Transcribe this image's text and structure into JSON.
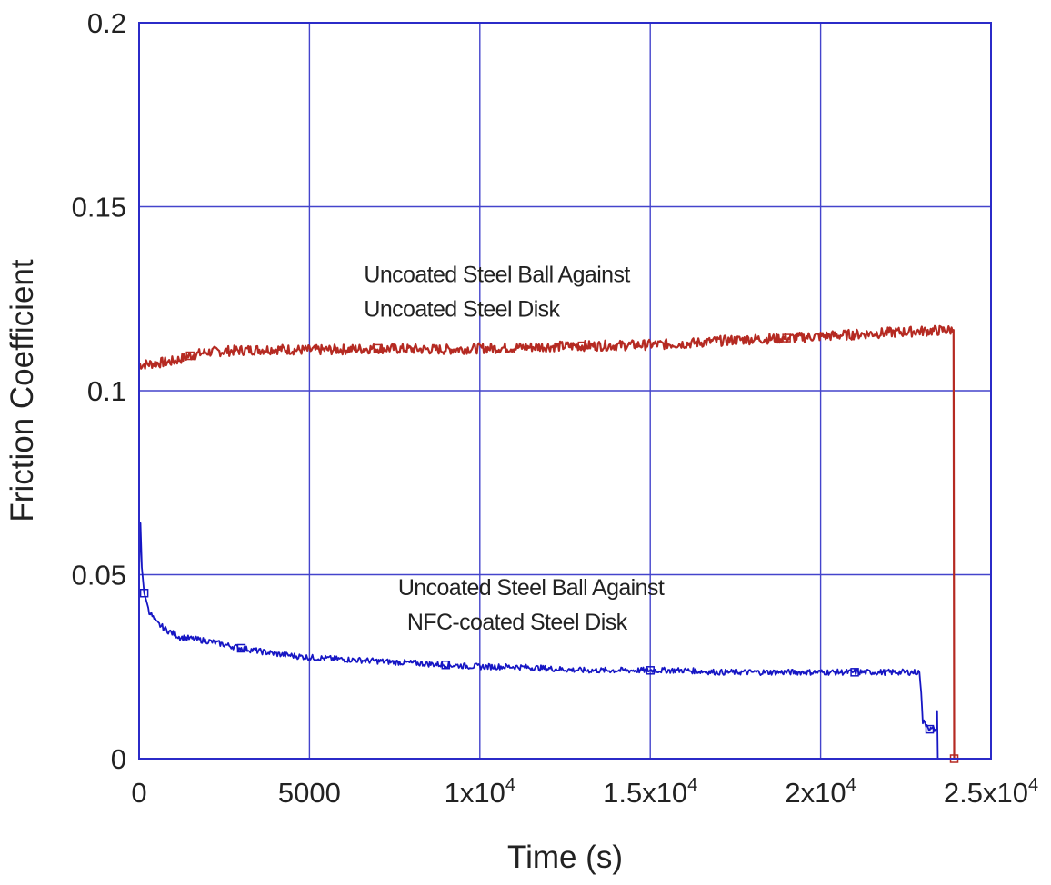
{
  "chart_data": {
    "type": "line",
    "title": "",
    "xlabel": "Time (s)",
    "ylabel": "Friction Coefficient",
    "xlim": [
      0,
      25000
    ],
    "ylim": [
      0,
      0.2
    ],
    "grid": true,
    "axis_color": "#2b2bc8",
    "grid_color": "#4444cc",
    "x_ticks": [
      {
        "value": 0,
        "label": "0",
        "sup": ""
      },
      {
        "value": 5000,
        "label": "5000",
        "sup": ""
      },
      {
        "value": 10000,
        "label": "1x10",
        "sup": "4"
      },
      {
        "value": 15000,
        "label": "1.5x10",
        "sup": "4"
      },
      {
        "value": 20000,
        "label": "2x10",
        "sup": "4"
      },
      {
        "value": 25000,
        "label": "2.5x10",
        "sup": "4"
      }
    ],
    "y_ticks": [
      {
        "value": 0,
        "label": "0"
      },
      {
        "value": 0.05,
        "label": "0.05"
      },
      {
        "value": 0.1,
        "label": "0.1"
      },
      {
        "value": 0.15,
        "label": "0.15"
      },
      {
        "value": 0.2,
        "label": "0.2"
      }
    ],
    "series": [
      {
        "color": "#b52a22",
        "noise": 0.0014,
        "points": [
          [
            0,
            0.107
          ],
          [
            500,
            0.1075
          ],
          [
            1000,
            0.108
          ],
          [
            1500,
            0.1095
          ],
          [
            2000,
            0.1105
          ],
          [
            3000,
            0.111
          ],
          [
            4000,
            0.1113
          ],
          [
            5000,
            0.111
          ],
          [
            6000,
            0.1112
          ],
          [
            7000,
            0.1115
          ],
          [
            8000,
            0.1113
          ],
          [
            9000,
            0.1112
          ],
          [
            10000,
            0.1115
          ],
          [
            11000,
            0.1117
          ],
          [
            12000,
            0.112
          ],
          [
            13000,
            0.1122
          ],
          [
            14000,
            0.1123
          ],
          [
            15000,
            0.1125
          ],
          [
            16000,
            0.1128
          ],
          [
            17000,
            0.1135
          ],
          [
            18000,
            0.114
          ],
          [
            19000,
            0.1143
          ],
          [
            20000,
            0.1148
          ],
          [
            21000,
            0.1153
          ],
          [
            22000,
            0.1158
          ],
          [
            23000,
            0.1162
          ],
          [
            23900,
            0.1165
          ],
          [
            23920,
            0.0
          ]
        ]
      },
      {
        "color": "#1616c4",
        "noise": 0.0008,
        "points": [
          [
            0,
            0.05
          ],
          [
            40,
            0.064
          ],
          [
            80,
            0.052
          ],
          [
            150,
            0.045
          ],
          [
            300,
            0.04
          ],
          [
            500,
            0.037
          ],
          [
            800,
            0.035
          ],
          [
            1200,
            0.033
          ],
          [
            2000,
            0.032
          ],
          [
            3000,
            0.03
          ],
          [
            4000,
            0.0285
          ],
          [
            5000,
            0.0275
          ],
          [
            6000,
            0.027
          ],
          [
            7000,
            0.0265
          ],
          [
            8000,
            0.026
          ],
          [
            9000,
            0.0255
          ],
          [
            10000,
            0.025
          ],
          [
            11000,
            0.025
          ],
          [
            12000,
            0.0245
          ],
          [
            13000,
            0.024
          ],
          [
            14000,
            0.024
          ],
          [
            15000,
            0.024
          ],
          [
            16000,
            0.024
          ],
          [
            17000,
            0.0235
          ],
          [
            18000,
            0.0235
          ],
          [
            19000,
            0.0235
          ],
          [
            20000,
            0.0235
          ],
          [
            21000,
            0.0235
          ],
          [
            22000,
            0.0235
          ],
          [
            22900,
            0.0235
          ],
          [
            22950,
            0.018
          ],
          [
            23000,
            0.01
          ],
          [
            23150,
            0.009
          ],
          [
            23200,
            0.008
          ],
          [
            23400,
            0.008
          ],
          [
            23420,
            0.013
          ],
          [
            23440,
            0.0
          ]
        ]
      }
    ],
    "annotations": [
      {
        "lines": [
          "Uncoated Steel Ball Against",
          "Uncoated Steel Disk"
        ],
        "at": [
          6600,
          0.1295
        ]
      },
      {
        "lines": [
          "Uncoated  Steel Ball Against",
          "NFC-coated Steel Disk"
        ],
        "at": [
          7600,
          0.0445
        ]
      }
    ]
  }
}
